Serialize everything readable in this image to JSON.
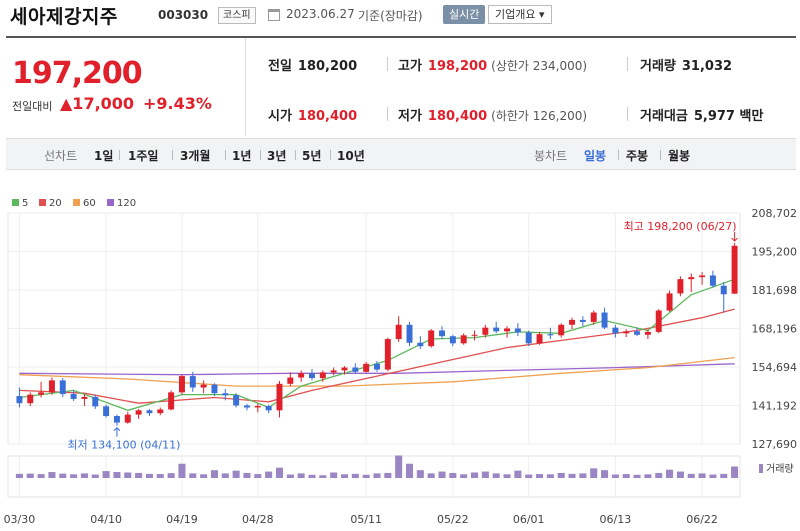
{
  "header": {
    "company_name": "세아제강지주",
    "stock_code": "003030",
    "market": "코스피",
    "date": "2023.06.27",
    "date_suffix": "기준(장마감)",
    "realtime_label": "실시간",
    "company_info_label": "기업개요 ▾"
  },
  "quote": {
    "price": "197,200",
    "change_label": "전일대비",
    "change": "▲17,000",
    "change_pct": "+9.43%",
    "prev_close_label": "전일",
    "prev_close": "180,200",
    "high_label": "고가",
    "high": "198,200",
    "upper_limit": "(상한가 234,000)",
    "volume_label": "거래량",
    "volume": "31,032",
    "open_label": "시가",
    "open": "180,400",
    "low_label": "저가",
    "low": "180,400",
    "lower_limit": "(하한가 126,200)",
    "amount_label": "거래대금",
    "amount": "5,977 백만"
  },
  "period_bar": {
    "line_label": "선차트",
    "line_tabs": [
      "1일",
      "1주일",
      "3개월",
      "1년",
      "3년",
      "5년",
      "10년"
    ],
    "candle_label": "봉차트",
    "candle_tabs": [
      "일봉",
      "주봉",
      "월봉"
    ],
    "active_candle": "일봉"
  },
  "colors": {
    "up": "#e0202b",
    "down": "#3a6fd8",
    "ma5": "#5cb85c",
    "ma20": "#e05050",
    "ma60": "#f0a050",
    "ma120": "#9966cc",
    "volume": "#9b86c4"
  },
  "chart_data": {
    "type": "candlestick",
    "legend": [
      "5",
      "20",
      "60",
      "120"
    ],
    "y_ticks": [
      "208,702",
      "195,200",
      "181,698",
      "168,196",
      "154,694",
      "141,192",
      "127,690"
    ],
    "x_ticks": [
      "03/30",
      "04/10",
      "04/19",
      "04/28",
      "05/11",
      "05/22",
      "06/01",
      "06/13",
      "06/22"
    ],
    "high_annotation": "최고 198,200 (06/27)",
    "low_annotation": "최저 134,100 (04/11)",
    "volume_label": "거래량",
    "ylim": [
      127690,
      208702
    ],
    "candles": [
      [
        144500,
        147500,
        140500,
        142000
      ],
      [
        142000,
        145800,
        141000,
        145000
      ],
      [
        145000,
        149500,
        144000,
        145800
      ],
      [
        145800,
        151000,
        145000,
        150000
      ],
      [
        150000,
        150800,
        144200,
        145200
      ],
      [
        145200,
        146500,
        142800,
        143500
      ],
      [
        143500,
        145000,
        141000,
        144200
      ],
      [
        144200,
        145000,
        140000,
        140900
      ],
      [
        140900,
        141500,
        137000,
        137500
      ],
      [
        137500,
        138000,
        134100,
        135200
      ],
      [
        135200,
        139000,
        134800,
        138000
      ],
      [
        138000,
        140000,
        136500,
        139500
      ],
      [
        139500,
        140000,
        137500,
        138500
      ],
      [
        138500,
        140500,
        137800,
        139800
      ],
      [
        139800,
        146500,
        139500,
        145800
      ],
      [
        145800,
        152000,
        145000,
        151500
      ],
      [
        151500,
        153000,
        146000,
        147500
      ],
      [
        147500,
        150000,
        145500,
        148500
      ],
      [
        148500,
        149000,
        144500,
        145500
      ],
      [
        145500,
        147000,
        143000,
        144800
      ],
      [
        144800,
        145500,
        140500,
        141200
      ],
      [
        141200,
        141800,
        139500,
        140500
      ],
      [
        140500,
        141800,
        138800,
        141000
      ],
      [
        141000,
        141500,
        138500,
        139500
      ],
      [
        139500,
        149800,
        137000,
        148800
      ],
      [
        148800,
        152800,
        148000,
        151000
      ],
      [
        151000,
        153500,
        149500,
        152500
      ],
      [
        152500,
        154000,
        150000,
        150800
      ],
      [
        150800,
        153500,
        149500,
        152800
      ],
      [
        152800,
        154500,
        151800,
        153500
      ],
      [
        153500,
        155000,
        152000,
        154500
      ],
      [
        154500,
        156000,
        152500,
        153000
      ],
      [
        153000,
        156500,
        152800,
        155800
      ],
      [
        155800,
        156800,
        153000,
        153800
      ],
      [
        153800,
        165000,
        153200,
        164500
      ],
      [
        164500,
        172500,
        163500,
        169500
      ],
      [
        169500,
        170500,
        162000,
        163200
      ],
      [
        163200,
        165500,
        161000,
        162000
      ],
      [
        162000,
        168000,
        161500,
        167500
      ],
      [
        167500,
        169000,
        164500,
        165500
      ],
      [
        165500,
        166000,
        162000,
        163000
      ],
      [
        163000,
        166500,
        162500,
        165800
      ],
      [
        165800,
        167500,
        164000,
        166000
      ],
      [
        166000,
        169500,
        165000,
        168500
      ],
      [
        168500,
        170500,
        166500,
        167200
      ],
      [
        167200,
        169000,
        165000,
        168200
      ],
      [
        168200,
        170000,
        165500,
        166800
      ],
      [
        166800,
        167500,
        162000,
        163000
      ],
      [
        163000,
        167000,
        162500,
        166200
      ],
      [
        166200,
        168500,
        164500,
        165800
      ],
      [
        165800,
        170000,
        165000,
        169500
      ],
      [
        169500,
        172000,
        168000,
        171200
      ],
      [
        171200,
        172500,
        169000,
        170500
      ],
      [
        170500,
        174500,
        169500,
        173800
      ],
      [
        173800,
        175500,
        168000,
        168500
      ],
      [
        168500,
        169500,
        165000,
        166500
      ],
      [
        166500,
        168000,
        165200,
        167200
      ],
      [
        167200,
        168500,
        165500,
        166000
      ],
      [
        166000,
        167800,
        164500,
        167000
      ],
      [
        167000,
        175000,
        166500,
        174500
      ],
      [
        174500,
        181500,
        174000,
        180500
      ],
      [
        180500,
        186500,
        179500,
        185500
      ],
      [
        185500,
        187500,
        181000,
        186200
      ],
      [
        186200,
        188000,
        183500,
        186800
      ],
      [
        186800,
        188500,
        182500,
        183200
      ],
      [
        183200,
        184500,
        174000,
        180200
      ],
      [
        180400,
        198200,
        180400,
        197200
      ]
    ],
    "ma": {
      "ma5": [
        [
          0,
          144000
        ],
        [
          5,
          146500
        ],
        [
          10,
          139500
        ],
        [
          15,
          145000
        ],
        [
          20,
          145000
        ],
        [
          23,
          140500
        ],
        [
          26,
          148000
        ],
        [
          30,
          152500
        ],
        [
          34,
          157000
        ],
        [
          38,
          164500
        ],
        [
          42,
          165000
        ],
        [
          46,
          167000
        ],
        [
          50,
          166500
        ],
        [
          54,
          171000
        ],
        [
          58,
          167500
        ],
        [
          62,
          180000
        ],
        [
          66,
          185500
        ]
      ],
      "ma20": [
        [
          0,
          146500
        ],
        [
          6,
          145500
        ],
        [
          11,
          142000
        ],
        [
          18,
          144000
        ],
        [
          23,
          142500
        ],
        [
          27,
          146500
        ],
        [
          33,
          151500
        ],
        [
          39,
          156500
        ],
        [
          45,
          161500
        ],
        [
          51,
          164500
        ],
        [
          57,
          167500
        ],
        [
          63,
          172000
        ],
        [
          66,
          175000
        ]
      ],
      "ma60": [
        [
          0,
          152000
        ],
        [
          10,
          150500
        ],
        [
          20,
          148000
        ],
        [
          30,
          148000
        ],
        [
          40,
          149500
        ],
        [
          50,
          152500
        ],
        [
          58,
          154500
        ],
        [
          66,
          158000
        ]
      ],
      "ma120": [
        [
          0,
          152500
        ],
        [
          15,
          152000
        ],
        [
          25,
          152500
        ],
        [
          35,
          152500
        ],
        [
          45,
          153500
        ],
        [
          55,
          154500
        ],
        [
          66,
          155800
        ]
      ]
    },
    "volumes": [
      0.18,
      0.19,
      0.17,
      0.26,
      0.19,
      0.16,
      0.2,
      0.15,
      0.3,
      0.26,
      0.24,
      0.22,
      0.18,
      0.17,
      0.21,
      0.62,
      0.2,
      0.16,
      0.34,
      0.2,
      0.32,
      0.22,
      0.17,
      0.28,
      0.45,
      0.15,
      0.2,
      0.14,
      0.12,
      0.24,
      0.16,
      0.18,
      0.14,
      0.2,
      0.22,
      0.98,
      0.62,
      0.34,
      0.2,
      0.28,
      0.22,
      0.16,
      0.24,
      0.28,
      0.2,
      0.16,
      0.32,
      0.15,
      0.17,
      0.16,
      0.22,
      0.18,
      0.2,
      0.42,
      0.34,
      0.15,
      0.17,
      0.14,
      0.16,
      0.22,
      0.36,
      0.28,
      0.18,
      0.2,
      0.15,
      0.18,
      0.5
    ]
  }
}
